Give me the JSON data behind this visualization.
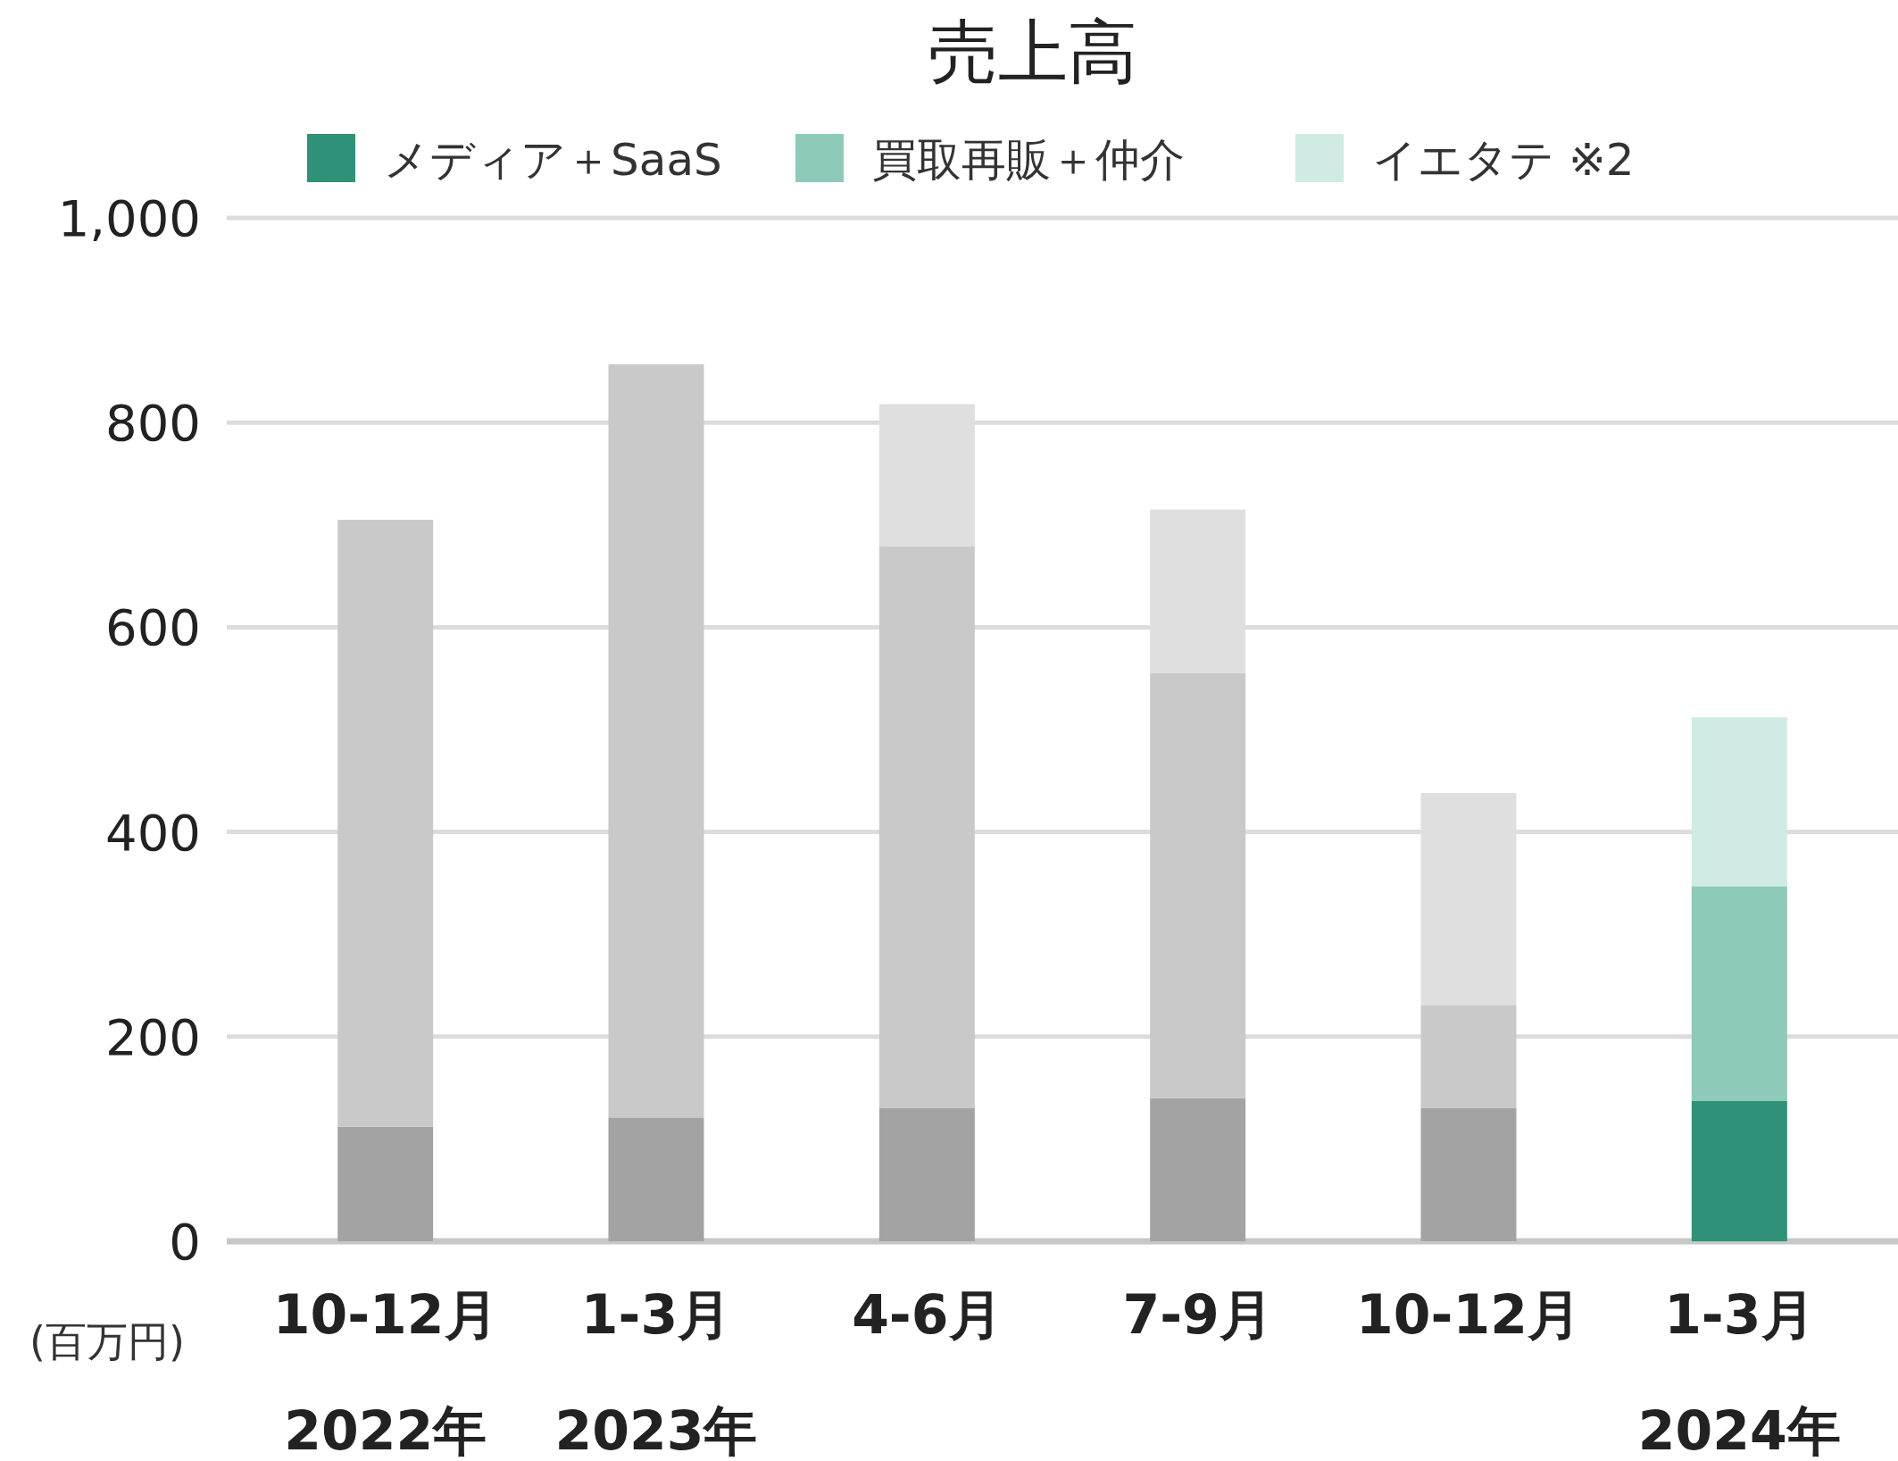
{
  "chart_data": {
    "type": "bar",
    "stacked": true,
    "title": "売上高",
    "ylabel": "(百万円)",
    "categories": [
      "10-12月\n2022年",
      "1-3月\n2023年",
      "4-6月",
      "7-9月",
      "10-12月",
      "1-3月\n2024年"
    ],
    "series": [
      {
        "name": "メディア＋SaaS",
        "color": "#2e9178",
        "colors": [
          "#a3a3a3",
          "#a3a3a3",
          "#a3a3a3",
          "#a3a3a3",
          "#a3a3a3",
          "#2e9178"
        ],
        "values": [
          112,
          121,
          130,
          140,
          130,
          137
        ]
      },
      {
        "name": "買取再販＋仲介",
        "color": "#8ecab9",
        "colors": [
          "#c9c9c9",
          "#c9c9c9",
          "#c9c9c9",
          "#c9c9c9",
          "#c9c9c9",
          "#8ecab9"
        ],
        "values": [
          593,
          736,
          549,
          415,
          101,
          210
        ]
      },
      {
        "name": "イエタテ ※2",
        "color": "#d0ebe3",
        "colors": [
          "#dfdfdf",
          "#dfdfdf",
          "#dfdfdf",
          "#dfdfdf",
          "#dfdfdf",
          "#d0ebe3"
        ],
        "values": [
          0,
          0,
          139,
          160,
          207,
          165
        ]
      }
    ],
    "ylim": [
      0,
      1000
    ],
    "yticks": [
      0,
      200,
      400,
      600,
      800,
      {
        "value": 1000,
        "label": "1,000"
      }
    ],
    "grid": "y",
    "legend": "top"
  }
}
